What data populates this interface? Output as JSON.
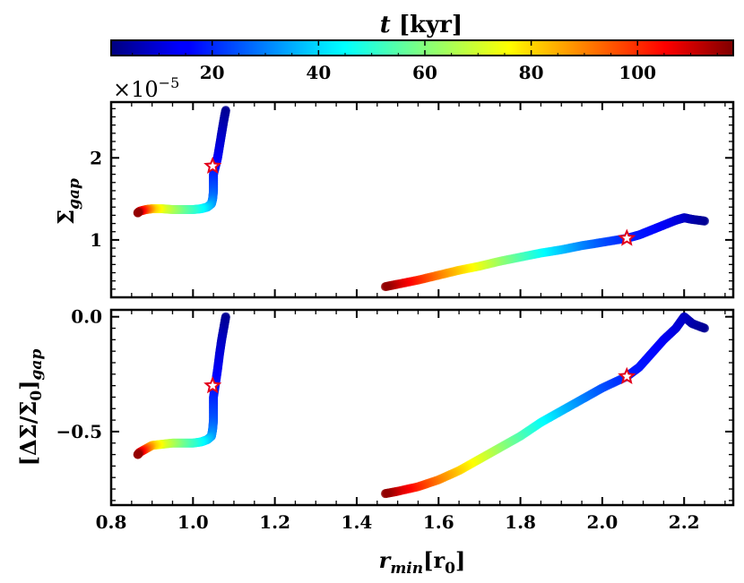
{
  "chart_data": [
    {
      "type": "scatter",
      "panel": "top",
      "title": "",
      "xlabel": "",
      "ylabel": "Σ_gap",
      "ylabel_main": "Σ",
      "ylabel_sub": "gap",
      "offset_text": "×10",
      "offset_exp": "−5",
      "xlim": [
        0.8,
        2.32
      ],
      "ylim": [
        0.3,
        2.68
      ],
      "yticks": [
        1,
        2
      ],
      "yticklabels": [
        "1",
        "2"
      ],
      "xticks": [
        0.8,
        1.0,
        1.2,
        1.4,
        1.6,
        1.8,
        2.0,
        2.2
      ],
      "grid": false,
      "color_by": "t [kyr]",
      "series": [
        {
          "x": [
            1.08,
            1.075,
            1.07,
            1.065,
            1.06,
            1.055,
            1.05,
            1.05,
            1.05,
            1.048,
            1.045,
            1.035,
            1.02,
            1.0,
            0.975,
            0.95,
            0.925,
            0.9,
            0.885,
            0.87,
            0.865
          ],
          "y": [
            2.58,
            2.45,
            2.3,
            2.15,
            2.0,
            1.9,
            1.8,
            1.7,
            1.6,
            1.5,
            1.44,
            1.4,
            1.38,
            1.37,
            1.37,
            1.37,
            1.38,
            1.38,
            1.37,
            1.35,
            1.33
          ],
          "t": [
            3,
            5,
            8,
            11,
            14,
            16.5,
            19,
            22,
            25,
            29,
            33,
            38,
            44,
            50,
            56,
            63,
            70,
            80,
            92,
            105,
            116
          ]
        },
        {
          "x": [
            2.25,
            2.22,
            2.2,
            2.18,
            2.15,
            2.12,
            2.09,
            2.06,
            2.0,
            1.95,
            1.9,
            1.85,
            1.8,
            1.75,
            1.7,
            1.65,
            1.6,
            1.55,
            1.5,
            1.47
          ],
          "y": [
            1.23,
            1.25,
            1.27,
            1.24,
            1.18,
            1.12,
            1.06,
            1.02,
            0.97,
            0.93,
            0.88,
            0.84,
            0.79,
            0.74,
            0.68,
            0.63,
            0.57,
            0.51,
            0.46,
            0.43
          ],
          "t": [
            3,
            5,
            8,
            11,
            14,
            16.5,
            18,
            19,
            24,
            30,
            37,
            45,
            53,
            61,
            70,
            79,
            88,
            98,
            108,
            116
          ]
        }
      ],
      "markers": [
        {
          "x": 1.048,
          "y": 1.9,
          "shape": "star"
        },
        {
          "x": 2.06,
          "y": 1.02,
          "shape": "star"
        }
      ]
    },
    {
      "type": "scatter",
      "panel": "bottom",
      "title": "",
      "xlabel": "r_min[r_0]",
      "xlabel_main": "r",
      "xlabel_sub": "min",
      "xlabel_unit": "[r",
      "xlabel_unit_sub": "0",
      "xlabel_unit_close": "]",
      "ylabel": "[ΔΣ/Σ_0]_gap",
      "ylabel_main": "[ΔΣ/Σ",
      "ylabel_sub0": "0",
      "ylabel_close": "]",
      "ylabel_sub": "gap",
      "xlim": [
        0.8,
        2.32
      ],
      "ylim": [
        -0.82,
        0.03
      ],
      "yticks": [
        0.0,
        -0.5
      ],
      "yticklabels": [
        "0.0",
        "−0.5"
      ],
      "xticks": [
        0.8,
        1.0,
        1.2,
        1.4,
        1.6,
        1.8,
        2.0,
        2.2
      ],
      "xticklabels": [
        "0.8",
        "1.0",
        "1.2",
        "1.4",
        "1.6",
        "1.8",
        "2.0",
        "2.2"
      ],
      "grid": false,
      "color_by": "t [kyr]",
      "series": [
        {
          "x": [
            1.08,
            1.075,
            1.07,
            1.065,
            1.06,
            1.055,
            1.05,
            1.05,
            1.05,
            1.048,
            1.045,
            1.035,
            1.02,
            1.0,
            0.975,
            0.95,
            0.925,
            0.9,
            0.885,
            0.87,
            0.865
          ],
          "y": [
            0.0,
            -0.05,
            -0.1,
            -0.16,
            -0.23,
            -0.29,
            -0.35,
            -0.4,
            -0.45,
            -0.49,
            -0.52,
            -0.535,
            -0.545,
            -0.55,
            -0.55,
            -0.55,
            -0.555,
            -0.56,
            -0.575,
            -0.59,
            -0.6
          ],
          "t": [
            3,
            5,
            8,
            11,
            14,
            16.5,
            19,
            22,
            25,
            29,
            33,
            38,
            44,
            50,
            56,
            63,
            70,
            80,
            92,
            105,
            116
          ]
        },
        {
          "x": [
            2.25,
            2.22,
            2.2,
            2.18,
            2.15,
            2.12,
            2.09,
            2.06,
            2.0,
            1.95,
            1.9,
            1.85,
            1.8,
            1.75,
            1.7,
            1.65,
            1.6,
            1.55,
            1.5,
            1.47
          ],
          "y": [
            -0.05,
            -0.03,
            0.0,
            -0.05,
            -0.1,
            -0.16,
            -0.22,
            -0.26,
            -0.31,
            -0.36,
            -0.41,
            -0.46,
            -0.52,
            -0.57,
            -0.62,
            -0.67,
            -0.71,
            -0.74,
            -0.76,
            -0.77
          ],
          "t": [
            3,
            5,
            8,
            11,
            14,
            16.5,
            18,
            19,
            24,
            30,
            37,
            45,
            53,
            61,
            70,
            79,
            88,
            98,
            108,
            116
          ]
        }
      ],
      "markers": [
        {
          "x": 1.048,
          "y": -0.3,
          "shape": "star"
        },
        {
          "x": 2.06,
          "y": -0.26,
          "shape": "star"
        }
      ]
    }
  ],
  "colorbar": {
    "label_main": "t",
    "label_unit": "[kyr]",
    "range": [
      1,
      118
    ],
    "ticks": [
      20,
      40,
      60,
      80,
      100
    ],
    "ticklabels": [
      "20",
      "40",
      "60",
      "80",
      "100"
    ],
    "colormap": "jet"
  },
  "colors": {
    "marker_edge": "#e3001b",
    "marker_face": "#ffffff",
    "axes": "#000000"
  }
}
